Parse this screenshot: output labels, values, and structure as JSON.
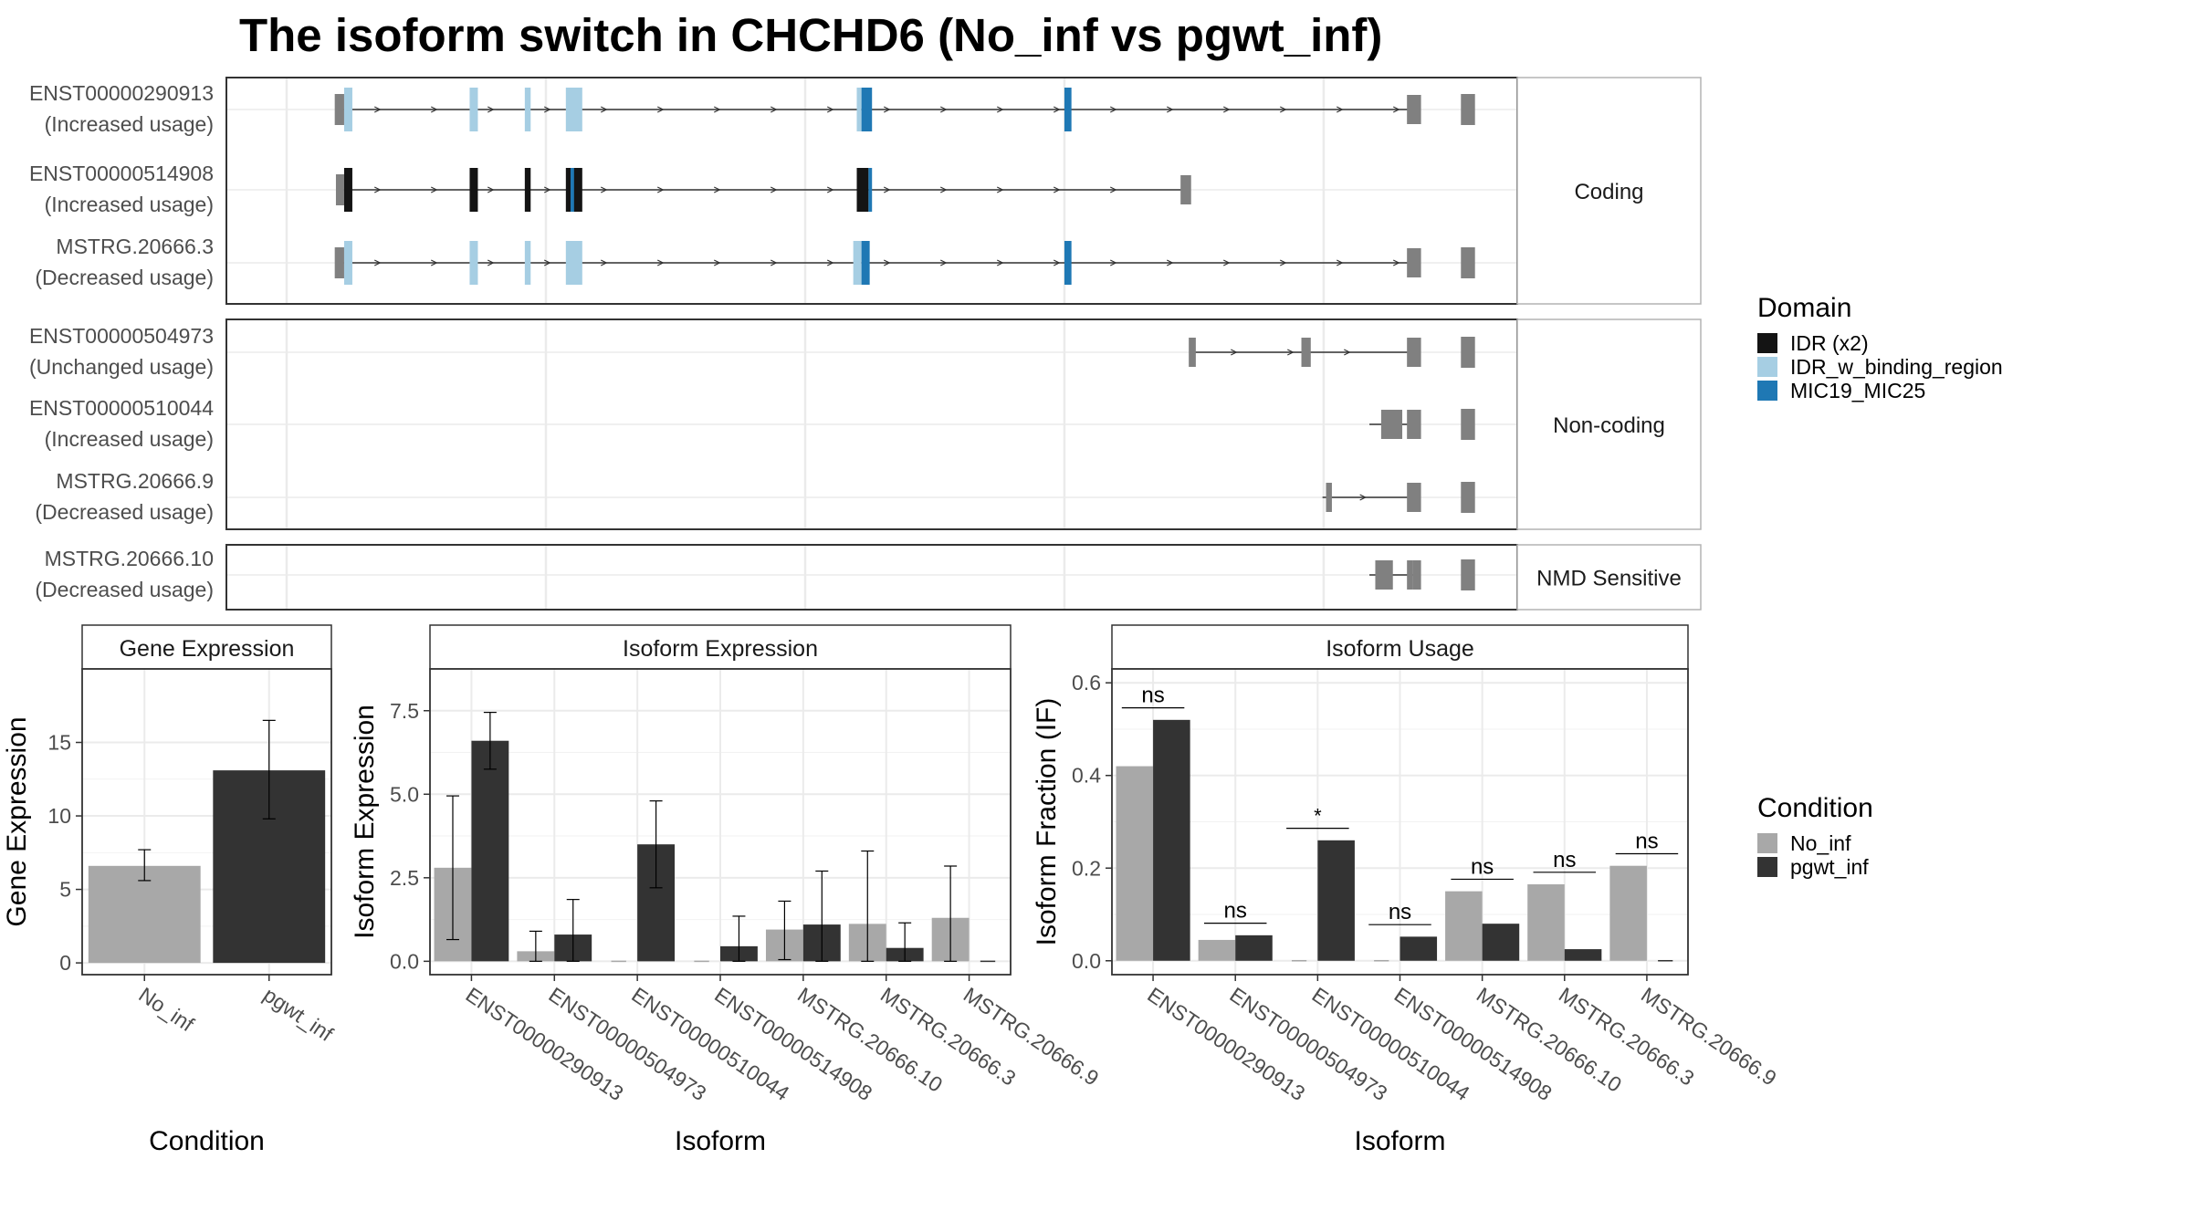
{
  "title": "The isoform switch in CHCHD6 (No_inf vs pgwt_inf)",
  "colors": {
    "no_inf": "#a8a8a8",
    "pgwt_inf": "#333333",
    "utr": "#808080",
    "idr": "#141414",
    "idr_binding": "#a6cee3",
    "mic19": "#1f78b4",
    "panel_border": "#333333",
    "strip_fill": "#ffffff",
    "grid": "#ebebeb"
  },
  "legends": {
    "domain": {
      "title": "Domain",
      "items": [
        {
          "label": "IDR (x2)",
          "color_key": "idr"
        },
        {
          "label": "IDR_w_binding_region",
          "color_key": "idr_binding"
        },
        {
          "label": "MIC19_MIC25",
          "color_key": "mic19"
        }
      ]
    },
    "condition": {
      "title": "Condition",
      "items": [
        {
          "label": "No_inf",
          "color_key": "no_inf"
        },
        {
          "label": "pgwt_inf",
          "color_key": "pgwt_inf"
        }
      ]
    }
  },
  "structure": {
    "groups": [
      {
        "label": "Coding",
        "isoforms": [
          {
            "name": "ENST00000290913",
            "usage": "(Increased usage)",
            "start": 0.05,
            "end": 0.97,
            "arrows": true,
            "exons": [
              {
                "s": 0.048,
                "e": 0.056,
                "t": "utr"
              },
              {
                "s": 0.056,
                "e": 0.063,
                "t": "idr_binding"
              },
              {
                "s": 0.163,
                "e": 0.17,
                "t": "idr_binding"
              },
              {
                "s": 0.21,
                "e": 0.215,
                "t": "idr_binding"
              },
              {
                "s": 0.245,
                "e": 0.259,
                "t": "idr_binding"
              },
              {
                "s": 0.493,
                "e": 0.497,
                "t": "idr_binding"
              },
              {
                "s": 0.497,
                "e": 0.506,
                "t": "mic19"
              },
              {
                "s": 0.67,
                "e": 0.676,
                "t": "mic19"
              },
              {
                "s": 0.962,
                "e": 0.974,
                "t": "utr"
              },
              {
                "s": 1.008,
                "e": 1.02,
                "t": "utr"
              }
            ]
          },
          {
            "name": "ENST00000514908",
            "usage": "(Increased usage)",
            "start": 0.05,
            "end": 0.77,
            "arrows": true,
            "exons": [
              {
                "s": 0.049,
                "e": 0.056,
                "t": "utr"
              },
              {
                "s": 0.056,
                "e": 0.063,
                "t": "idr"
              },
              {
                "s": 0.163,
                "e": 0.17,
                "t": "idr"
              },
              {
                "s": 0.21,
                "e": 0.215,
                "t": "idr"
              },
              {
                "s": 0.245,
                "e": 0.259,
                "t": "idr"
              },
              {
                "s": 0.249,
                "e": 0.252,
                "t": "mic19"
              },
              {
                "s": 0.493,
                "e": 0.503,
                "t": "idr"
              },
              {
                "s": 0.503,
                "e": 0.506,
                "t": "mic19"
              },
              {
                "s": 0.769,
                "e": 0.778,
                "t": "utr"
              }
            ]
          },
          {
            "name": "MSTRG.20666.3",
            "usage": "(Decreased usage)",
            "start": 0.05,
            "end": 0.97,
            "arrows": true,
            "exons": [
              {
                "s": 0.048,
                "e": 0.056,
                "t": "utr"
              },
              {
                "s": 0.056,
                "e": 0.063,
                "t": "idr_binding"
              },
              {
                "s": 0.163,
                "e": 0.17,
                "t": "idr_binding"
              },
              {
                "s": 0.21,
                "e": 0.215,
                "t": "idr_binding"
              },
              {
                "s": 0.245,
                "e": 0.259,
                "t": "idr_binding"
              },
              {
                "s": 0.49,
                "e": 0.497,
                "t": "idr_binding"
              },
              {
                "s": 0.497,
                "e": 0.504,
                "t": "mic19"
              },
              {
                "s": 0.67,
                "e": 0.676,
                "t": "mic19"
              },
              {
                "s": 0.962,
                "e": 0.974,
                "t": "utr"
              },
              {
                "s": 1.008,
                "e": 1.02,
                "t": "utr"
              }
            ]
          }
        ]
      },
      {
        "label": "Non-coding",
        "isoforms": [
          {
            "name": "ENST00000504973",
            "usage": "(Unchanged usage)",
            "start": 0.78,
            "end": 0.97,
            "arrows": true,
            "exons": [
              {
                "s": 0.776,
                "e": 0.782,
                "t": "utr"
              },
              {
                "s": 0.872,
                "e": 0.88,
                "t": "utr"
              },
              {
                "s": 0.962,
                "e": 0.974,
                "t": "utr"
              },
              {
                "s": 1.008,
                "e": 1.02,
                "t": "utr"
              }
            ]
          },
          {
            "name": "ENST00000510044",
            "usage": "(Increased usage)",
            "start": 0.93,
            "end": 0.97,
            "arrows": false,
            "exons": [
              {
                "s": 0.94,
                "e": 0.958,
                "t": "utr"
              },
              {
                "s": 0.962,
                "e": 0.974,
                "t": "utr"
              },
              {
                "s": 1.008,
                "e": 1.02,
                "t": "utr"
              }
            ]
          },
          {
            "name": "MSTRG.20666.9",
            "usage": "(Decreased usage)",
            "start": 0.89,
            "end": 0.97,
            "arrows": true,
            "exons": [
              {
                "s": 0.893,
                "e": 0.898,
                "t": "utr"
              },
              {
                "s": 0.962,
                "e": 0.974,
                "t": "utr"
              },
              {
                "s": 1.008,
                "e": 1.02,
                "t": "utr"
              }
            ]
          }
        ]
      },
      {
        "label": "NMD Sensitive",
        "isoforms": [
          {
            "name": "MSTRG.20666.10",
            "usage": "(Decreased usage)",
            "start": 0.93,
            "end": 0.97,
            "arrows": false,
            "exons": [
              {
                "s": 0.935,
                "e": 0.95,
                "t": "utr"
              },
              {
                "s": 0.962,
                "e": 0.967,
                "t": "utr"
              },
              {
                "s": 0.967,
                "e": 0.974,
                "t": "utr"
              },
              {
                "s": 1.008,
                "e": 1.02,
                "t": "utr"
              }
            ]
          }
        ]
      }
    ]
  },
  "chart_data": [
    {
      "type": "bar",
      "panel": "Gene Expression",
      "xlabel": "Condition",
      "ylabel": "Gene Expression",
      "ylim": [
        -0.8,
        20
      ],
      "yticks": [
        0,
        5,
        10,
        15
      ],
      "ytick_labels": [
        "0",
        "5",
        "10",
        "15"
      ],
      "categories": [
        "No_inf",
        "pgwt_inf"
      ],
      "values": [
        6.6,
        13.1
      ],
      "err_low": [
        5.6,
        9.8
      ],
      "err_high": [
        7.7,
        16.5
      ]
    },
    {
      "type": "bar",
      "panel": "Isoform Expression",
      "xlabel": "Isoform",
      "ylabel": "Isoform Expression",
      "ylim": [
        -0.4,
        8.75
      ],
      "yticks": [
        0,
        2.5,
        5,
        7.5
      ],
      "ytick_labels": [
        "0.0",
        "2.5",
        "5.0",
        "7.5"
      ],
      "categories": [
        "ENST00000290913",
        "ENST00000504973",
        "ENST00000510044",
        "ENST00000514908",
        "MSTRG.20666.10",
        "MSTRG.20666.3",
        "MSTRG.20666.9"
      ],
      "series": [
        {
          "name": "No_inf",
          "values": [
            2.8,
            0.3,
            0.0,
            0.0,
            0.95,
            1.12,
            1.3
          ],
          "err_low": [
            0.65,
            0.0,
            0.0,
            0.0,
            0.05,
            0.0,
            0.0
          ],
          "err_high": [
            4.95,
            0.9,
            0.0,
            0.0,
            1.8,
            3.3,
            2.85
          ]
        },
        {
          "name": "pgwt_inf",
          "values": [
            6.6,
            0.8,
            3.5,
            0.45,
            1.1,
            0.4,
            0.0
          ],
          "err_low": [
            5.75,
            0.0,
            2.2,
            0.0,
            0.0,
            0.0,
            0.0
          ],
          "err_high": [
            7.45,
            1.85,
            4.8,
            1.35,
            2.7,
            1.15,
            0.0
          ]
        }
      ]
    },
    {
      "type": "bar",
      "panel": "Isoform Usage",
      "xlabel": "Isoform",
      "ylabel": "Isoform Fraction (IF)",
      "ylim": [
        -0.03,
        0.63
      ],
      "yticks": [
        0,
        0.2,
        0.4,
        0.6
      ],
      "ytick_labels": [
        "0.0",
        "0.2",
        "0.4",
        "0.6"
      ],
      "categories": [
        "ENST00000290913",
        "ENST00000504973",
        "ENST00000510044",
        "ENST00000514908",
        "MSTRG.20666.10",
        "MSTRG.20666.3",
        "MSTRG.20666.9"
      ],
      "series": [
        {
          "name": "No_inf",
          "values": [
            0.42,
            0.045,
            0.0,
            0.0,
            0.15,
            0.165,
            0.205
          ]
        },
        {
          "name": "pgwt_inf",
          "values": [
            0.52,
            0.055,
            0.26,
            0.052,
            0.08,
            0.025,
            0.0
          ]
        }
      ],
      "significance": [
        "ns",
        "ns",
        "*",
        "ns",
        "ns",
        "ns",
        "ns"
      ]
    }
  ]
}
